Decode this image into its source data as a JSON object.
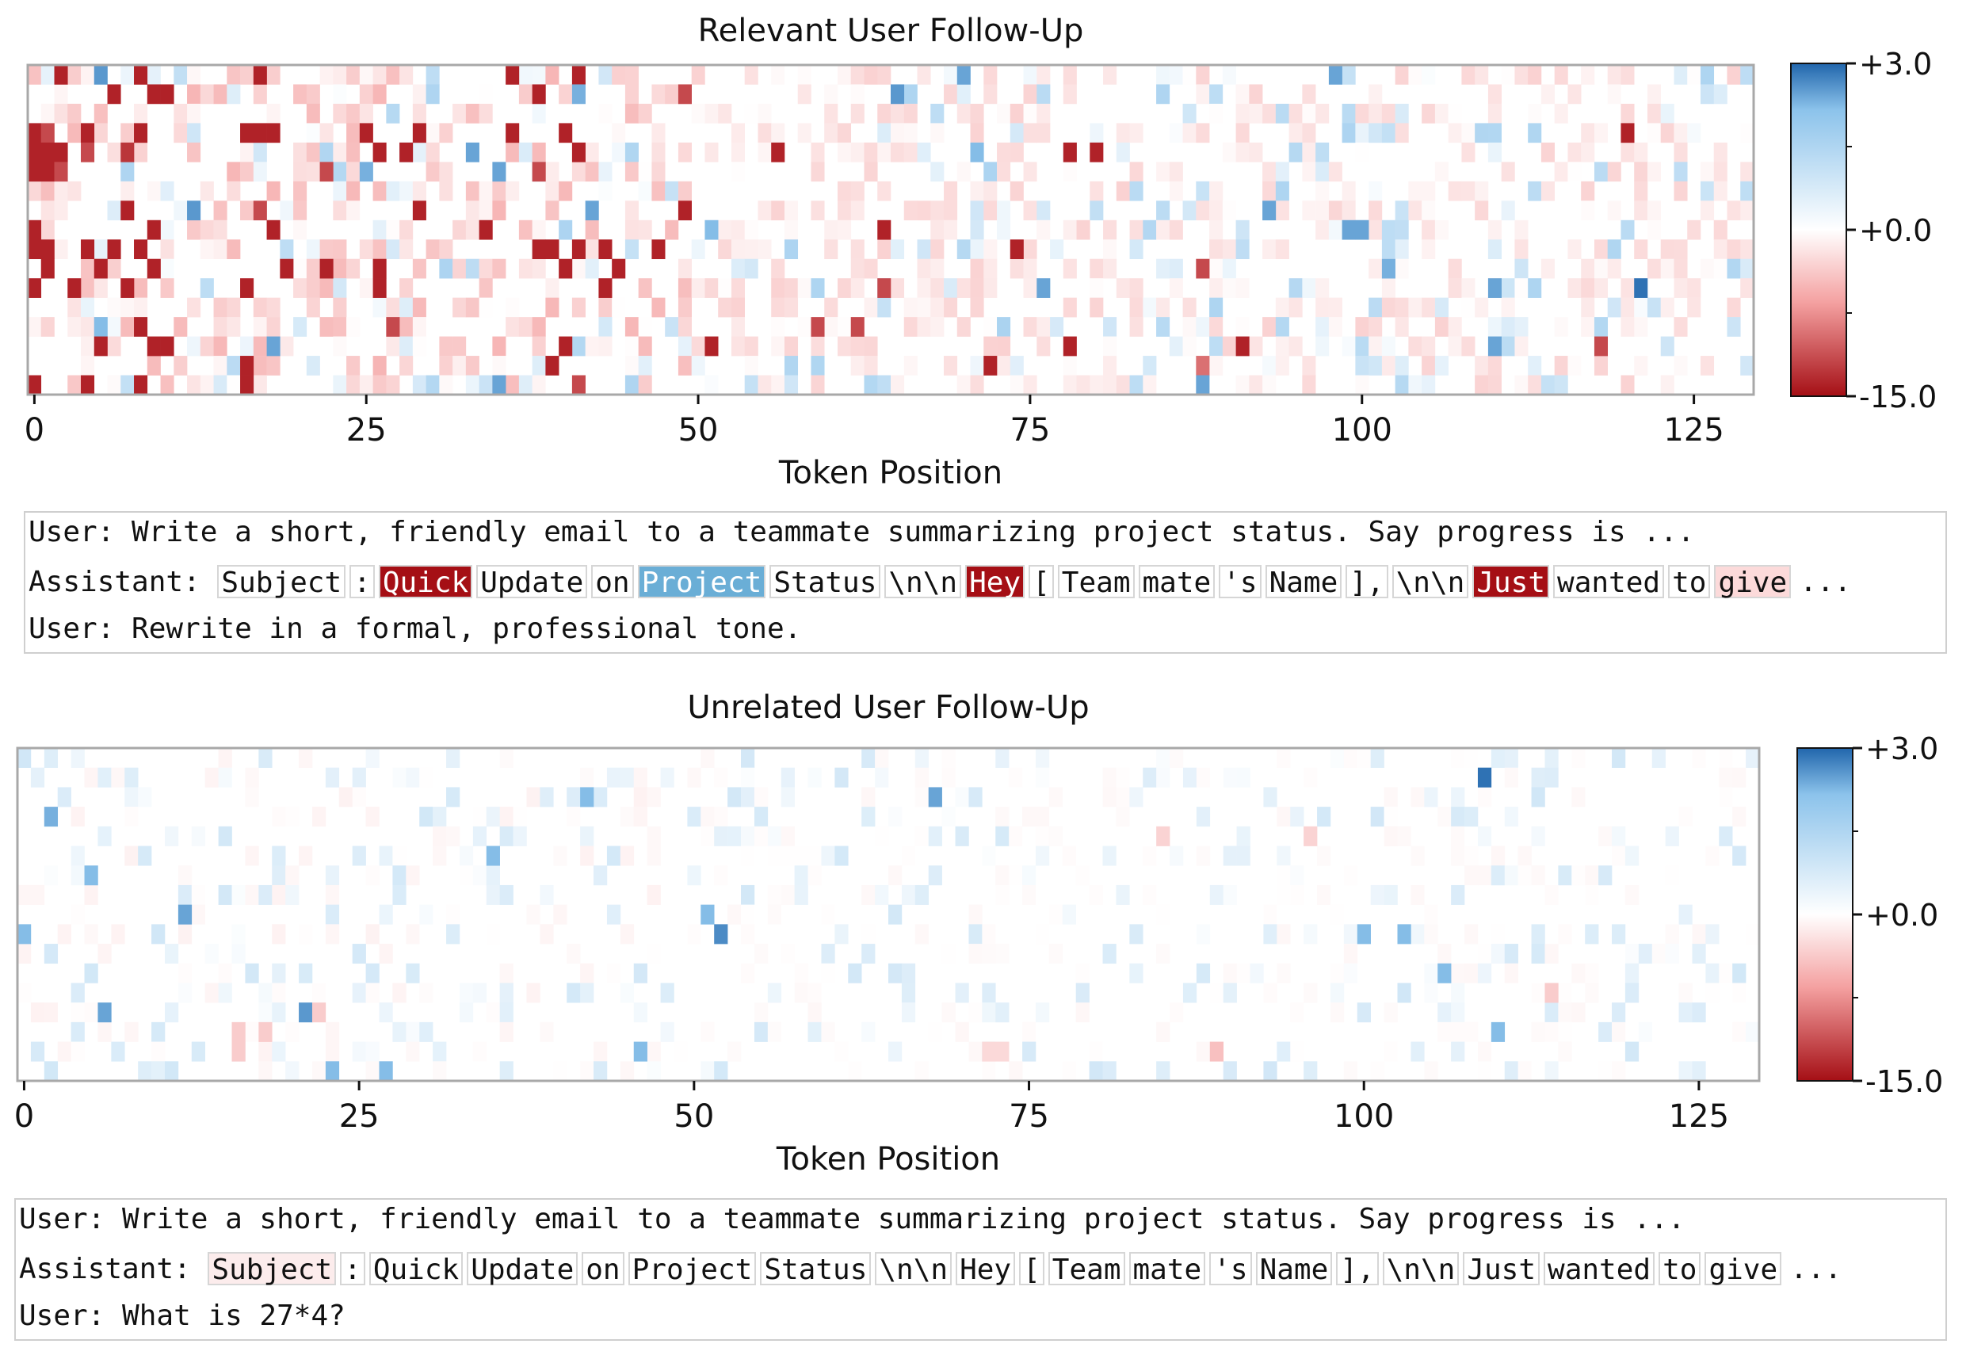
{
  "colors": {
    "strong_neg": "#a50f15",
    "strong_pos": "#2166ac",
    "mid_pos": "#6aaed6",
    "light_neg": "#fce6e6"
  },
  "chart_data": [
    {
      "type": "heatmap",
      "title": "Relevant User Follow-Up",
      "xlabel": "Token Position",
      "xticks": [
        "0",
        "25",
        "50",
        "75",
        "100",
        "125"
      ],
      "xlim": [
        0,
        130
      ],
      "rows": 16,
      "colorbar": {
        "ticks": [
          "+3.0",
          "+0.0",
          "-15.0"
        ],
        "range": [
          -15.0,
          3.0
        ]
      },
      "intensity": {
        "neg_density": 0.34,
        "neg_scale": 1.0,
        "pos_density": 0.12,
        "pos_scale": 1.0,
        "seed": 17
      },
      "highlights": [
        {
          "x": 2,
          "y": 0,
          "v": -14
        },
        {
          "x": 5,
          "y": 0,
          "v": 2.2
        },
        {
          "x": 8,
          "y": 0,
          "v": -14
        },
        {
          "x": 17,
          "y": 0,
          "v": -14
        },
        {
          "x": 36,
          "y": 0,
          "v": -14
        },
        {
          "x": 41,
          "y": 0,
          "v": -14
        },
        {
          "x": 70,
          "y": 0,
          "v": 2.0
        },
        {
          "x": 98,
          "y": 0,
          "v": 2.0
        },
        {
          "x": 6,
          "y": 1,
          "v": -14
        },
        {
          "x": 9,
          "y": 1,
          "v": -14
        },
        {
          "x": 10,
          "y": 1,
          "v": -14
        },
        {
          "x": 38,
          "y": 1,
          "v": -14
        },
        {
          "x": 49,
          "y": 1,
          "v": -12
        },
        {
          "x": 41,
          "y": 1,
          "v": 1.8
        },
        {
          "x": 65,
          "y": 1,
          "v": 2.2
        },
        {
          "x": 0,
          "y": 3,
          "v": -14
        },
        {
          "x": 1,
          "y": 3,
          "v": -12
        },
        {
          "x": 4,
          "y": 3,
          "v": -14
        },
        {
          "x": 8,
          "y": 3,
          "v": -14
        },
        {
          "x": 16,
          "y": 3,
          "v": -14
        },
        {
          "x": 17,
          "y": 3,
          "v": -14
        },
        {
          "x": 18,
          "y": 3,
          "v": -14
        },
        {
          "x": 25,
          "y": 3,
          "v": -14
        },
        {
          "x": 29,
          "y": 3,
          "v": -14
        },
        {
          "x": 36,
          "y": 3,
          "v": -14
        },
        {
          "x": 40,
          "y": 3,
          "v": -14
        },
        {
          "x": 120,
          "y": 3,
          "v": -14
        },
        {
          "x": 0,
          "y": 4,
          "v": -14
        },
        {
          "x": 1,
          "y": 4,
          "v": -14
        },
        {
          "x": 2,
          "y": 4,
          "v": -14
        },
        {
          "x": 4,
          "y": 4,
          "v": -12
        },
        {
          "x": 7,
          "y": 4,
          "v": -13
        },
        {
          "x": 26,
          "y": 4,
          "v": -14
        },
        {
          "x": 28,
          "y": 4,
          "v": -14
        },
        {
          "x": 41,
          "y": 4,
          "v": -14
        },
        {
          "x": 56,
          "y": 4,
          "v": -14
        },
        {
          "x": 78,
          "y": 4,
          "v": -14
        },
        {
          "x": 80,
          "y": 4,
          "v": -14
        },
        {
          "x": 33,
          "y": 4,
          "v": 2.0
        },
        {
          "x": 71,
          "y": 4,
          "v": 1.6
        },
        {
          "x": 0,
          "y": 5,
          "v": -14
        },
        {
          "x": 1,
          "y": 5,
          "v": -14
        },
        {
          "x": 2,
          "y": 5,
          "v": -12
        },
        {
          "x": 22,
          "y": 5,
          "v": -12
        },
        {
          "x": 35,
          "y": 5,
          "v": 2.0
        },
        {
          "x": 38,
          "y": 5,
          "v": -12
        },
        {
          "x": 25,
          "y": 5,
          "v": 1.8
        },
        {
          "x": 7,
          "y": 7,
          "v": -14
        },
        {
          "x": 17,
          "y": 7,
          "v": -12
        },
        {
          "x": 29,
          "y": 7,
          "v": -14
        },
        {
          "x": 49,
          "y": 7,
          "v": -14
        },
        {
          "x": 12,
          "y": 7,
          "v": 2.2
        },
        {
          "x": 42,
          "y": 7,
          "v": 2.0
        },
        {
          "x": 93,
          "y": 7,
          "v": 2.0
        },
        {
          "x": 0,
          "y": 8,
          "v": -14
        },
        {
          "x": 9,
          "y": 8,
          "v": -14
        },
        {
          "x": 18,
          "y": 8,
          "v": -14
        },
        {
          "x": 34,
          "y": 8,
          "v": -14
        },
        {
          "x": 64,
          "y": 8,
          "v": -14
        },
        {
          "x": 99,
          "y": 8,
          "v": 2.0
        },
        {
          "x": 100,
          "y": 8,
          "v": 2.0
        },
        {
          "x": 51,
          "y": 8,
          "v": 1.6
        },
        {
          "x": 0,
          "y": 9,
          "v": -14
        },
        {
          "x": 1,
          "y": 9,
          "v": -14
        },
        {
          "x": 4,
          "y": 9,
          "v": -14
        },
        {
          "x": 6,
          "y": 9,
          "v": -14
        },
        {
          "x": 8,
          "y": 9,
          "v": -14
        },
        {
          "x": 38,
          "y": 9,
          "v": -14
        },
        {
          "x": 39,
          "y": 9,
          "v": -14
        },
        {
          "x": 41,
          "y": 9,
          "v": -14
        },
        {
          "x": 43,
          "y": 9,
          "v": -14
        },
        {
          "x": 47,
          "y": 9,
          "v": -14
        },
        {
          "x": 74,
          "y": 9,
          "v": -14
        },
        {
          "x": 1,
          "y": 10,
          "v": -14
        },
        {
          "x": 5,
          "y": 10,
          "v": -14
        },
        {
          "x": 9,
          "y": 10,
          "v": -14
        },
        {
          "x": 19,
          "y": 10,
          "v": -14
        },
        {
          "x": 22,
          "y": 10,
          "v": -14
        },
        {
          "x": 26,
          "y": 10,
          "v": -14
        },
        {
          "x": 40,
          "y": 10,
          "v": -14
        },
        {
          "x": 44,
          "y": 10,
          "v": -14
        },
        {
          "x": 102,
          "y": 10,
          "v": 1.8
        },
        {
          "x": 88,
          "y": 10,
          "v": -12
        },
        {
          "x": 0,
          "y": 11,
          "v": -14
        },
        {
          "x": 3,
          "y": 11,
          "v": -14
        },
        {
          "x": 7,
          "y": 11,
          "v": -14
        },
        {
          "x": 16,
          "y": 11,
          "v": -14
        },
        {
          "x": 26,
          "y": 11,
          "v": -14
        },
        {
          "x": 43,
          "y": 11,
          "v": -14
        },
        {
          "x": 64,
          "y": 11,
          "v": -12
        },
        {
          "x": 121,
          "y": 11,
          "v": 2.8
        },
        {
          "x": 76,
          "y": 11,
          "v": 2.0
        },
        {
          "x": 110,
          "y": 11,
          "v": 2.0
        },
        {
          "x": 8,
          "y": 13,
          "v": -14
        },
        {
          "x": 27,
          "y": 13,
          "v": -12
        },
        {
          "x": 59,
          "y": 13,
          "v": -12
        },
        {
          "x": 62,
          "y": 13,
          "v": -12
        },
        {
          "x": 5,
          "y": 13,
          "v": 1.6
        },
        {
          "x": 5,
          "y": 14,
          "v": -14
        },
        {
          "x": 9,
          "y": 14,
          "v": -14
        },
        {
          "x": 10,
          "y": 14,
          "v": -14
        },
        {
          "x": 18,
          "y": 14,
          "v": 2.0
        },
        {
          "x": 40,
          "y": 14,
          "v": -14
        },
        {
          "x": 51,
          "y": 14,
          "v": -14
        },
        {
          "x": 78,
          "y": 14,
          "v": -14
        },
        {
          "x": 91,
          "y": 14,
          "v": -14
        },
        {
          "x": 110,
          "y": 14,
          "v": 2.0
        },
        {
          "x": 118,
          "y": 14,
          "v": -12
        },
        {
          "x": 16,
          "y": 15,
          "v": -14
        },
        {
          "x": 39,
          "y": 15,
          "v": -14
        },
        {
          "x": 72,
          "y": 15,
          "v": -14
        },
        {
          "x": 88,
          "y": 15,
          "v": -10
        },
        {
          "x": 0,
          "y": 16,
          "v": -14
        },
        {
          "x": 4,
          "y": 16,
          "v": -14
        },
        {
          "x": 8,
          "y": 16,
          "v": -14
        },
        {
          "x": 16,
          "y": 16,
          "v": -14
        },
        {
          "x": 35,
          "y": 16,
          "v": 2.0
        },
        {
          "x": 41,
          "y": 16,
          "v": -12
        },
        {
          "x": 88,
          "y": 16,
          "v": 2.0
        }
      ]
    },
    {
      "type": "heatmap",
      "title": "Unrelated User Follow-Up",
      "xlabel": "Token Position",
      "xticks": [
        "0",
        "25",
        "50",
        "75",
        "100",
        "125"
      ],
      "xlim": [
        0,
        130
      ],
      "rows": 16,
      "colorbar": {
        "ticks": [
          "+3.0",
          "+0.0",
          "-15.0"
        ],
        "range": [
          -15.0,
          3.0
        ]
      },
      "intensity": {
        "neg_density": 0.18,
        "neg_scale": 0.18,
        "pos_density": 0.14,
        "pos_scale": 0.55,
        "seed": 41
      },
      "highlights": [
        {
          "x": 109,
          "y": 1,
          "v": 2.8
        },
        {
          "x": 68,
          "y": 2,
          "v": 2.0
        },
        {
          "x": 42,
          "y": 2,
          "v": 1.6
        },
        {
          "x": 2,
          "y": 3,
          "v": 1.8
        },
        {
          "x": 35,
          "y": 5,
          "v": 1.6
        },
        {
          "x": 5,
          "y": 6,
          "v": 1.6
        },
        {
          "x": 12,
          "y": 8,
          "v": 2.0
        },
        {
          "x": 52,
          "y": 9,
          "v": 2.4
        },
        {
          "x": 51,
          "y": 8,
          "v": 1.6
        },
        {
          "x": 0,
          "y": 9,
          "v": 1.6
        },
        {
          "x": 100,
          "y": 9,
          "v": 1.6
        },
        {
          "x": 103,
          "y": 9,
          "v": 1.6
        },
        {
          "x": 106,
          "y": 11,
          "v": 1.6
        },
        {
          "x": 114,
          "y": 12,
          "v": -4
        },
        {
          "x": 6,
          "y": 13,
          "v": 2.0
        },
        {
          "x": 21,
          "y": 13,
          "v": 2.2
        },
        {
          "x": 22,
          "y": 13,
          "v": -4
        },
        {
          "x": 16,
          "y": 14,
          "v": -4
        },
        {
          "x": 18,
          "y": 14,
          "v": -4
        },
        {
          "x": 16,
          "y": 15,
          "v": -4
        },
        {
          "x": 72,
          "y": 15,
          "v": -3
        },
        {
          "x": 73,
          "y": 15,
          "v": -3
        },
        {
          "x": 89,
          "y": 15,
          "v": -5
        },
        {
          "x": 27,
          "y": 16,
          "v": 1.6
        },
        {
          "x": 23,
          "y": 16,
          "v": 1.6
        },
        {
          "x": 46,
          "y": 15,
          "v": 1.6
        },
        {
          "x": 110,
          "y": 14,
          "v": 1.6
        },
        {
          "x": 85,
          "y": 4,
          "v": -3.5
        },
        {
          "x": 96,
          "y": 4,
          "v": -3.5
        }
      ]
    }
  ],
  "textbox1": {
    "line1": "User: Write a short, friendly email to a teammate summarizing project status. Say progress is ...",
    "assistant_prefix": "Assistant: ",
    "tokens": [
      {
        "t": "Subject",
        "bg": "#ffffff",
        "fg": "#111111"
      },
      {
        "t": ":",
        "bg": "#ffffff",
        "fg": "#111111"
      },
      {
        "t": "Quick",
        "bg": "#a50f15",
        "fg": "#ffffff"
      },
      {
        "t": "Update",
        "bg": "#ffffff",
        "fg": "#111111"
      },
      {
        "t": "on",
        "bg": "#ffffff",
        "fg": "#111111"
      },
      {
        "t": "Project",
        "bg": "#6aaed6",
        "fg": "#ffffff"
      },
      {
        "t": "Status",
        "bg": "#ffffff",
        "fg": "#111111"
      },
      {
        "t": "\\n\\n",
        "bg": "#ffffff",
        "fg": "#111111"
      },
      {
        "t": "Hey",
        "bg": "#a50f15",
        "fg": "#ffffff"
      },
      {
        "t": "[",
        "bg": "#ffffff",
        "fg": "#111111"
      },
      {
        "t": "Team",
        "bg": "#ffffff",
        "fg": "#111111"
      },
      {
        "t": "mate",
        "bg": "#ffffff",
        "fg": "#111111"
      },
      {
        "t": "'s",
        "bg": "#ffffff",
        "fg": "#111111"
      },
      {
        "t": "Name",
        "bg": "#ffffff",
        "fg": "#111111"
      },
      {
        "t": "],",
        "bg": "#ffffff",
        "fg": "#111111"
      },
      {
        "t": "\\n\\n",
        "bg": "#ffffff",
        "fg": "#111111"
      },
      {
        "t": "Just",
        "bg": "#a50f15",
        "fg": "#ffffff"
      },
      {
        "t": "wanted",
        "bg": "#ffffff",
        "fg": "#111111"
      },
      {
        "t": "to",
        "bg": "#ffffff",
        "fg": "#111111"
      },
      {
        "t": "give",
        "bg": "#fcdada",
        "fg": "#111111"
      }
    ],
    "ellipsis": "...",
    "line3": "User: Rewrite in a formal, professional tone."
  },
  "textbox2": {
    "line1": "User: Write a short, friendly email to a teammate summarizing project status. Say progress is ...",
    "assistant_prefix": "Assistant: ",
    "tokens": [
      {
        "t": "Subject",
        "bg": "#fcecec",
        "fg": "#111111"
      },
      {
        "t": ":",
        "bg": "#ffffff",
        "fg": "#111111"
      },
      {
        "t": "Quick",
        "bg": "#ffffff",
        "fg": "#111111"
      },
      {
        "t": "Update",
        "bg": "#ffffff",
        "fg": "#111111"
      },
      {
        "t": "on",
        "bg": "#ffffff",
        "fg": "#111111"
      },
      {
        "t": "Project",
        "bg": "#ffffff",
        "fg": "#111111"
      },
      {
        "t": "Status",
        "bg": "#ffffff",
        "fg": "#111111"
      },
      {
        "t": "\\n\\n",
        "bg": "#ffffff",
        "fg": "#111111"
      },
      {
        "t": "Hey",
        "bg": "#ffffff",
        "fg": "#111111"
      },
      {
        "t": "[",
        "bg": "#ffffff",
        "fg": "#111111"
      },
      {
        "t": "Team",
        "bg": "#ffffff",
        "fg": "#111111"
      },
      {
        "t": "mate",
        "bg": "#ffffff",
        "fg": "#111111"
      },
      {
        "t": "'s",
        "bg": "#ffffff",
        "fg": "#111111"
      },
      {
        "t": "Name",
        "bg": "#ffffff",
        "fg": "#111111"
      },
      {
        "t": "],",
        "bg": "#ffffff",
        "fg": "#111111"
      },
      {
        "t": "\\n\\n",
        "bg": "#ffffff",
        "fg": "#111111"
      },
      {
        "t": "Just",
        "bg": "#ffffff",
        "fg": "#111111"
      },
      {
        "t": "wanted",
        "bg": "#ffffff",
        "fg": "#111111"
      },
      {
        "t": "to",
        "bg": "#ffffff",
        "fg": "#111111"
      },
      {
        "t": "give",
        "bg": "#ffffff",
        "fg": "#111111"
      }
    ],
    "ellipsis": "...",
    "line3": "User: What is 27*4?"
  }
}
